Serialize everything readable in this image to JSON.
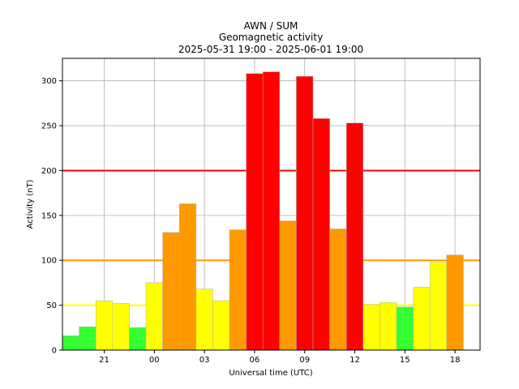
{
  "chart_data": {
    "type": "bar",
    "title_lines": [
      "AWN / SUM",
      "Geomagnetic activity",
      "2025-05-31 19:00 - 2025-06-01 19:00"
    ],
    "xlabel": "Universal time (UTC)",
    "ylabel": "Activity (nT)",
    "ylim": [
      0,
      325
    ],
    "xlim": [
      -0.5,
      24.5
    ],
    "grid": true,
    "x_tick_labels": [
      "21",
      "00",
      "03",
      "06",
      "09",
      "12",
      "15",
      "18"
    ],
    "x_tick_hours": [
      2,
      5,
      8,
      11,
      14,
      17,
      20,
      23
    ],
    "y_ticks": [
      0,
      50,
      100,
      150,
      200,
      250,
      300
    ],
    "values": [
      16,
      26,
      55,
      52,
      25,
      75,
      131,
      163,
      68,
      55,
      134,
      308,
      310,
      144,
      305,
      258,
      135,
      253,
      51,
      53,
      48,
      70,
      98,
      106
    ],
    "thresholds": [
      {
        "value": 50,
        "color": "#ffff00"
      },
      {
        "value": 100,
        "color": "#ff9900"
      },
      {
        "value": 200,
        "color": "#ff0000"
      }
    ],
    "colors": {
      "low": "#33ff33",
      "moderate": "#ffff00",
      "high": "#ff9900",
      "very_high": "#ff0000"
    }
  }
}
